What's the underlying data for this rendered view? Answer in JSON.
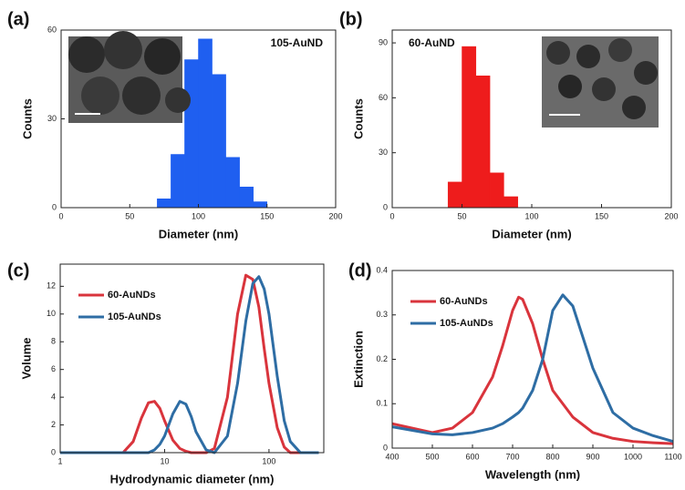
{
  "chart_data": [
    {
      "type": "histogram",
      "panel_label": "(a)",
      "annotation": "105-AuND",
      "xlabel": "Diameter (nm)",
      "ylabel": "Counts",
      "bins": [
        70,
        80,
        90,
        100,
        110,
        120,
        130,
        140,
        150
      ],
      "counts": [
        3,
        18,
        50,
        57,
        45,
        17,
        7,
        2
      ],
      "color": "#1f5ff0",
      "xlim": [
        0,
        200
      ],
      "xticks": [
        0,
        50,
        100,
        150,
        200
      ],
      "ylim": [
        0,
        60
      ],
      "yticks": [
        0,
        30,
        60
      ]
    },
    {
      "type": "histogram",
      "panel_label": "(b)",
      "annotation": "60-AuND",
      "xlabel": "Diameter (nm)",
      "ylabel": "Counts",
      "bins": [
        40,
        50,
        60,
        70,
        80,
        90
      ],
      "counts": [
        14,
        88,
        72,
        19,
        6
      ],
      "color": "#ee1c1c",
      "xlim": [
        0,
        200
      ],
      "xticks": [
        0,
        50,
        100,
        150,
        200
      ],
      "ylim": [
        0,
        97
      ],
      "yticks": [
        0,
        30,
        60,
        90
      ]
    },
    {
      "type": "line",
      "panel_label": "(c)",
      "xlabel": "Hydrodynamic diameter (nm)",
      "ylabel": "Volume",
      "log_x": true,
      "x": [
        1,
        2,
        3,
        4,
        5,
        6,
        7,
        8,
        9,
        10,
        12,
        14,
        16,
        18,
        20,
        25,
        30,
        40,
        50,
        60,
        70,
        80,
        90,
        100,
        120,
        140,
        160,
        200,
        300
      ],
      "series": [
        {
          "name": "60-AuNDs",
          "color": "#d9343c",
          "values": [
            0,
            0,
            0,
            0,
            0.8,
            2.5,
            3.6,
            3.7,
            3.2,
            2.3,
            0.9,
            0.3,
            0.1,
            0,
            0,
            0,
            0.3,
            4,
            10,
            12.8,
            12.5,
            10.5,
            7.5,
            5,
            1.8,
            0.4,
            0,
            0,
            0
          ]
        },
        {
          "name": "105-AuNDs",
          "color": "#2e6da4",
          "values": [
            0,
            0,
            0,
            0,
            0,
            0,
            0,
            0.2,
            0.6,
            1.2,
            2.8,
            3.7,
            3.5,
            2.6,
            1.5,
            0.2,
            0,
            1.2,
            5,
            9.5,
            12.2,
            12.7,
            11.8,
            10,
            5.5,
            2.3,
            0.8,
            0,
            0
          ]
        }
      ],
      "xlim": [
        1,
        335
      ],
      "xticks": [
        1,
        10,
        100
      ],
      "ylim": [
        0,
        13.6
      ],
      "yticks": [
        0,
        2,
        4,
        6,
        8,
        10,
        12
      ]
    },
    {
      "type": "line",
      "panel_label": "(d)",
      "xlabel": "Wavelength (nm)",
      "ylabel": "Extinction",
      "x": [
        400,
        450,
        500,
        550,
        600,
        650,
        675,
        700,
        715,
        725,
        750,
        775,
        800,
        825,
        850,
        900,
        950,
        1000,
        1050,
        1100
      ],
      "series": [
        {
          "name": "60-AuNDs",
          "color": "#d9343c",
          "values": [
            0.055,
            0.045,
            0.035,
            0.045,
            0.08,
            0.16,
            0.23,
            0.31,
            0.34,
            0.335,
            0.28,
            0.2,
            0.13,
            0.1,
            0.07,
            0.035,
            0.022,
            0.015,
            0.012,
            0.01
          ]
        },
        {
          "name": "105-AuNDs",
          "color": "#2e6da4",
          "values": [
            0.048,
            0.04,
            0.032,
            0.03,
            0.035,
            0.045,
            0.055,
            0.07,
            0.08,
            0.09,
            0.13,
            0.2,
            0.31,
            0.345,
            0.32,
            0.18,
            0.08,
            0.045,
            0.028,
            0.015
          ]
        }
      ],
      "xlim": [
        400,
        1100
      ],
      "xticks": [
        400,
        500,
        600,
        700,
        800,
        900,
        1000,
        1100
      ],
      "ylim": [
        0,
        0.4
      ],
      "yticks": [
        0,
        0.1,
        0.2,
        0.3,
        0.4
      ]
    }
  ]
}
